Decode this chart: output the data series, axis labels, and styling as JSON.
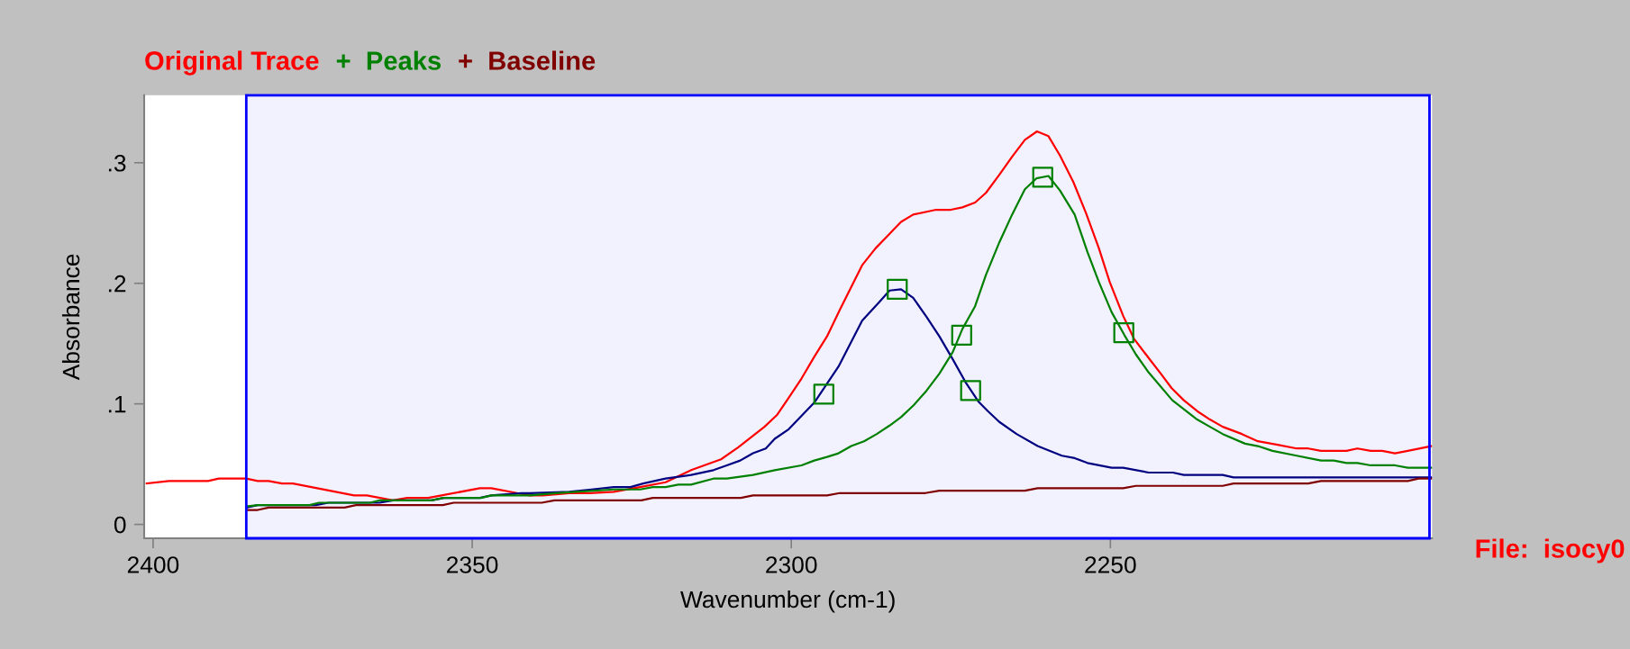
{
  "chart_data": {
    "type": "line",
    "xlabel": "Wavenumber (cm-1)",
    "ylabel": "Absorbance",
    "xlim": [
      2401.4,
      2199.6
    ],
    "ylim": [
      -0.0115,
      0.356
    ],
    "xticks": [
      2400,
      2350,
      2300,
      2250
    ],
    "yticks": [
      {
        "value": 0,
        "label": "0"
      },
      {
        "value": 0.1,
        "label": ".1"
      },
      {
        "value": 0.2,
        "label": ".2"
      },
      {
        "value": 0.3,
        "label": ".3"
      }
    ],
    "grid": false,
    "legend": "top left",
    "marker": "none",
    "line_style": "solid",
    "bands": [
      {
        "axis": "x",
        "from": 2385.4,
        "to": 2200,
        "color": "#0000ff",
        "label": null
      }
    ],
    "annotations": [
      "File:  isocy0"
    ],
    "series": [
      {
        "name": "Original Trace",
        "color": "#ff0000",
        "x": [
          2401,
          2397.5,
          2391.4,
          2389.7,
          2385.4,
          2383.6,
          2381.9,
          2379.8,
          2378.1,
          2368.5,
          2366.5,
          2362.4,
          2360.2,
          2356.9,
          2348.8,
          2347,
          2343,
          2341,
          2338.9,
          2334.8,
          2331.6,
          2327.8,
          2323.7,
          2319.7,
          2315.7,
          2311,
          2308.3,
          2304.2,
          2302.2,
          2300.4,
          2298.4,
          2296.4,
          2294.4,
          2292.4,
          2290.6,
          2288.9,
          2286.8,
          2284.8,
          2282.8,
          2280.9,
          2277.3,
          2275,
          2273.2,
          2271.2,
          2269.5,
          2267.4,
          2265.4,
          2263.4,
          2261.5,
          2259.7,
          2257.9,
          2255.8,
          2253.8,
          2251.8,
          2250.1,
          2248,
          2246.3,
          2244,
          2242.1,
          2240.4,
          2238.5,
          2236.4,
          2234.4,
          2232.4,
          2229.4,
          2226.9,
          2223.8,
          2220.8,
          2219,
          2217,
          2213,
          2211.3,
          2209.2,
          2207.4,
          2205.4,
          2203.4,
          2199.7
        ],
        "values": [
          0.034,
          0.036,
          0.036,
          0.038,
          0.038,
          0.036,
          0.036,
          0.034,
          0.034,
          0.024,
          0.024,
          0.02,
          0.022,
          0.022,
          0.03,
          0.03,
          0.026,
          0.024,
          0.024,
          0.026,
          0.026,
          0.027,
          0.031,
          0.035,
          0.045,
          0.054,
          0.064,
          0.081,
          0.091,
          0.105,
          0.121,
          0.139,
          0.156,
          0.178,
          0.197,
          0.215,
          0.229,
          0.24,
          0.251,
          0.257,
          0.261,
          0.261,
          0.263,
          0.267,
          0.275,
          0.29,
          0.305,
          0.319,
          0.326,
          0.322,
          0.306,
          0.284,
          0.258,
          0.229,
          0.201,
          0.173,
          0.154,
          0.138,
          0.125,
          0.113,
          0.103,
          0.094,
          0.087,
          0.081,
          0.075,
          0.069,
          0.066,
          0.063,
          0.063,
          0.061,
          0.061,
          0.063,
          0.061,
          0.061,
          0.059,
          0.061,
          0.065
        ]
      },
      {
        "color": "#000080",
        "x": [
          2385.4,
          2383.6,
          2374.5,
          2372.5,
          2364.5,
          2362.4,
          2356.4,
          2354.4,
          2348.8,
          2347,
          2342.3,
          2340.9,
          2334.8,
          2331.3,
          2327.8,
          2325.2,
          2323.2,
          2319.7,
          2315.7,
          2312.2,
          2310.1,
          2308,
          2306,
          2304,
          2302.6,
          2300.4,
          2296.4,
          2292.6,
          2288.9,
          2286.3,
          2284.6,
          2282.8,
          2280.9,
          2278.8,
          2276.8,
          2274.7,
          2272.7,
          2270.7,
          2269.2,
          2267.4,
          2264.7,
          2261.4,
          2257.6,
          2255.6,
          2253.6,
          2249.8,
          2248,
          2244,
          2240.2,
          2238.5,
          2232.4,
          2230.7,
          2199.7
        ],
        "values": [
          0.014,
          0.016,
          0.016,
          0.018,
          0.018,
          0.02,
          0.02,
          0.022,
          0.022,
          0.024,
          0.026,
          0.026,
          0.027,
          0.029,
          0.031,
          0.031,
          0.034,
          0.038,
          0.041,
          0.045,
          0.049,
          0.053,
          0.059,
          0.063,
          0.071,
          0.079,
          0.101,
          0.131,
          0.169,
          0.184,
          0.194,
          0.195,
          0.188,
          0.172,
          0.156,
          0.137,
          0.118,
          0.102,
          0.094,
          0.085,
          0.075,
          0.065,
          0.057,
          0.055,
          0.051,
          0.047,
          0.047,
          0.043,
          0.043,
          0.041,
          0.041,
          0.039,
          0.039
        ]
      },
      {
        "name": "+  Peaks",
        "color": "#008000",
        "x": [
          2385.4,
          2383.6,
          2375.5,
          2374,
          2366,
          2364.5,
          2356.4,
          2354.6,
          2348.6,
          2347,
          2341,
          2336.9,
          2327.8,
          2323.7,
          2321.7,
          2319.7,
          2317.7,
          2315.7,
          2312.2,
          2310.1,
          2306,
          2302.6,
          2298.4,
          2296.4,
          2294.4,
          2292.6,
          2290.6,
          2288.6,
          2286.6,
          2284.6,
          2282.8,
          2280.8,
          2278.8,
          2276.8,
          2274.7,
          2273.2,
          2271.2,
          2269.5,
          2267.4,
          2265.4,
          2263.4,
          2261.6,
          2259.7,
          2257.9,
          2255.6,
          2253.6,
          2251.8,
          2249.8,
          2247.8,
          2246,
          2244,
          2240.3,
          2236.4,
          2234.4,
          2232.4,
          2228.9,
          2226.9,
          2224.6,
          2220.8,
          2217,
          2215,
          2213,
          2211.3,
          2209.2,
          2205.4,
          2203.4,
          2199.7
        ],
        "values": [
          0.015,
          0.016,
          0.016,
          0.018,
          0.018,
          0.02,
          0.02,
          0.022,
          0.022,
          0.024,
          0.024,
          0.026,
          0.029,
          0.029,
          0.031,
          0.031,
          0.033,
          0.033,
          0.038,
          0.038,
          0.041,
          0.045,
          0.049,
          0.053,
          0.056,
          0.059,
          0.065,
          0.069,
          0.075,
          0.082,
          0.089,
          0.099,
          0.111,
          0.125,
          0.143,
          0.162,
          0.181,
          0.207,
          0.234,
          0.257,
          0.278,
          0.287,
          0.289,
          0.277,
          0.257,
          0.226,
          0.201,
          0.176,
          0.157,
          0.141,
          0.126,
          0.103,
          0.087,
          0.081,
          0.075,
          0.067,
          0.065,
          0.061,
          0.057,
          0.053,
          0.053,
          0.051,
          0.051,
          0.049,
          0.049,
          0.047,
          0.047
        ]
      },
      {
        "name": "+  Baseline",
        "color": "#800000",
        "x": [
          2385.4,
          2383.6,
          2381.9,
          2370,
          2368.2,
          2354.6,
          2352.9,
          2339.1,
          2337.1,
          2323.5,
          2321.7,
          2307.9,
          2306,
          2294.4,
          2292.4,
          2279,
          2276.8,
          2263.4,
          2261.4,
          2248,
          2246,
          2232.4,
          2230.7,
          2219,
          2217,
          2203.4,
          2201.7,
          2199.7
        ],
        "values": [
          0.012,
          0.012,
          0.014,
          0.014,
          0.016,
          0.016,
          0.018,
          0.018,
          0.02,
          0.02,
          0.022,
          0.022,
          0.024,
          0.024,
          0.026,
          0.026,
          0.028,
          0.028,
          0.03,
          0.03,
          0.032,
          0.032,
          0.034,
          0.034,
          0.036,
          0.036,
          0.038,
          0.038
        ]
      },
      {
        "type": "scatter",
        "marker": "square",
        "color": "#008000",
        "x": [
          2294.9,
          2283.4,
          2271.9,
          2273.3,
          2260.6,
          2247.9
        ],
        "values": [
          0.108,
          0.195,
          0.111,
          0.157,
          0.288,
          0.159
        ]
      }
    ]
  }
}
